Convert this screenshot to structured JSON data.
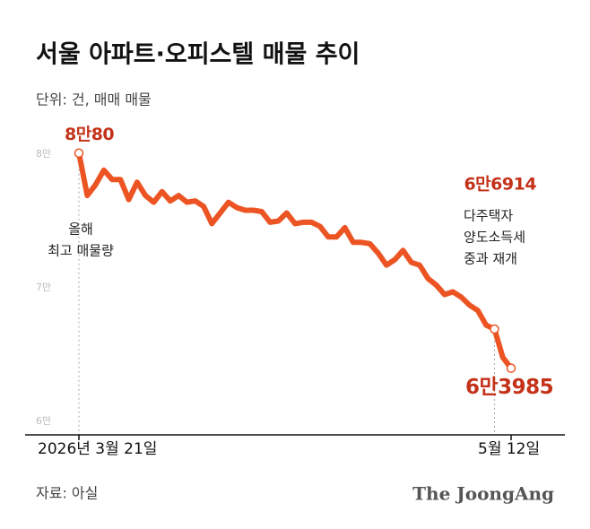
{
  "chart_data": {
    "type": "line",
    "title": "서울 아파트·오피스텔 매물 추이",
    "subtitle": "단위: 건, 매매 매물",
    "categories": [
      "2026년 3월 21일",
      null,
      null,
      null,
      null,
      null,
      null,
      null,
      null,
      null,
      null,
      null,
      null,
      null,
      null,
      null,
      null,
      null,
      null,
      null,
      null,
      null,
      null,
      null,
      null,
      null,
      null,
      null,
      null,
      null,
      null,
      null,
      null,
      null,
      null,
      null,
      null,
      null,
      null,
      null,
      null,
      null,
      null,
      null,
      null,
      null,
      null,
      null,
      null,
      null,
      null,
      null,
      "5월 12일"
    ],
    "values": [
      80080,
      76900,
      77700,
      78800,
      78100,
      78100,
      76600,
      77900,
      76900,
      76400,
      77200,
      76500,
      76900,
      76400,
      76500,
      76100,
      74800,
      75600,
      76400,
      76000,
      75800,
      75800,
      75700,
      74900,
      75000,
      75600,
      74800,
      74900,
      74900,
      74600,
      73800,
      73800,
      74500,
      73400,
      73400,
      73300,
      72600,
      71700,
      72100,
      72800,
      71900,
      71700,
      70700,
      70200,
      69500,
      69700,
      69300,
      68700,
      68300,
      67200,
      66914,
      64800,
      63985
    ],
    "value_labels": [
      "8만80",
      null,
      null,
      null,
      null,
      null,
      null,
      null,
      null,
      null,
      null,
      null,
      null,
      null,
      null,
      null,
      null,
      null,
      null,
      null,
      null,
      null,
      null,
      null,
      null,
      null,
      null,
      null,
      null,
      null,
      null,
      null,
      null,
      null,
      null,
      null,
      null,
      null,
      null,
      null,
      null,
      null,
      null,
      null,
      null,
      null,
      null,
      null,
      null,
      null,
      "6만6914",
      null,
      "6만3985"
    ],
    "color": "#ec5423",
    "label_color": "#c4321a",
    "ylim": [
      59000,
      81000
    ],
    "yticks": [
      {
        "value": 60000,
        "label": "6만"
      },
      {
        "value": 70000,
        "label": "7만"
      },
      {
        "value": 80000,
        "label": "8만"
      }
    ],
    "annotations": [
      [
        "올해",
        "최고 매물량"
      ],
      [
        "다주택자",
        "양도소득세",
        "중과 재개"
      ]
    ],
    "source": "자료: 아실",
    "logo": "The JoongAng"
  }
}
